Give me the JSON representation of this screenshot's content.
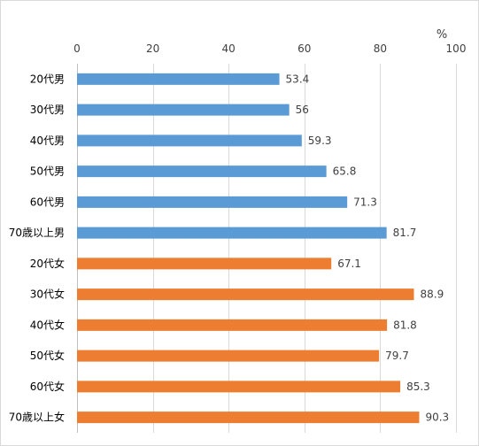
{
  "chart_data": {
    "type": "bar",
    "orientation": "horizontal",
    "axis_position": "top",
    "unit": "%",
    "xlim": [
      0,
      100
    ],
    "ticks": [
      0,
      20,
      40,
      60,
      80,
      100
    ],
    "grid": true,
    "colors": {
      "male": "#5b9bd5",
      "female": "#ed7d31"
    },
    "categories": [
      "20代男",
      "30代男",
      "40代男",
      "50代男",
      "60代男",
      "70歳以上男",
      "20代女",
      "30代女",
      "40代女",
      "50代女",
      "60代女",
      "70歳以上女"
    ],
    "values": [
      53.4,
      56,
      59.3,
      65.8,
      71.3,
      81.7,
      67.1,
      88.9,
      81.8,
      79.7,
      85.3,
      90.3
    ],
    "data_labels": [
      "53.4",
      "56",
      "59.3",
      "65.8",
      "71.3",
      "81.7",
      "67.1",
      "88.9",
      "81.8",
      "79.7",
      "85.3",
      "90.3"
    ],
    "groups": [
      "male",
      "male",
      "male",
      "male",
      "male",
      "male",
      "female",
      "female",
      "female",
      "female",
      "female",
      "female"
    ]
  }
}
